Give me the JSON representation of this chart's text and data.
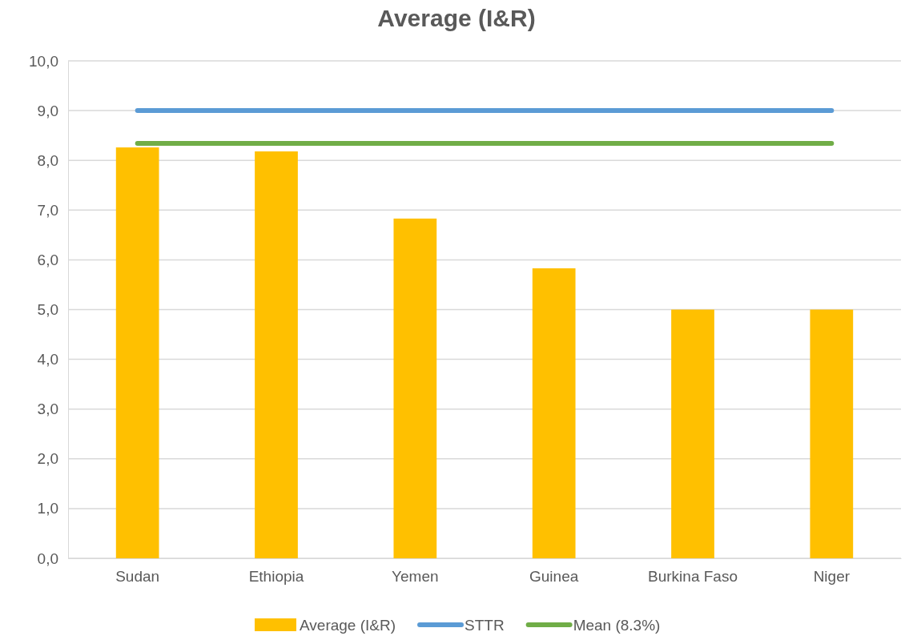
{
  "chart_data": {
    "type": "bar",
    "title": "Average (I&R)",
    "categories": [
      "Sudan",
      "Ethiopia",
      "Yemen",
      "Guinea",
      "Burkina Faso",
      "Niger"
    ],
    "series": [
      {
        "name": "Average (I&R)",
        "color": "#ffc000",
        "values": [
          8.26,
          8.18,
          6.83,
          5.83,
          5.0,
          5.0
        ]
      },
      {
        "name": "STTR",
        "type": "line",
        "color": "#5b9bd5",
        "values": [
          9.0,
          9.0,
          9.0,
          9.0,
          9.0,
          9.0
        ]
      },
      {
        "name": "Mean (8.3%)",
        "type": "line",
        "color": "#70ad47",
        "values": [
          8.34,
          8.34,
          8.34,
          8.34,
          8.34,
          8.34
        ]
      }
    ],
    "ylim": [
      0,
      10
    ],
    "yticks": [
      {
        "value": 0,
        "label": "0,0"
      },
      {
        "value": 1,
        "label": "1,0"
      },
      {
        "value": 2,
        "label": "2,0"
      },
      {
        "value": 3,
        "label": "3,0"
      },
      {
        "value": 4,
        "label": "4,0"
      },
      {
        "value": 5,
        "label": "5,0"
      },
      {
        "value": 6,
        "label": "6,0"
      },
      {
        "value": 7,
        "label": "7,0"
      },
      {
        "value": 8,
        "label": "8,0"
      },
      {
        "value": 9,
        "label": "9,0"
      },
      {
        "value": 10,
        "label": "10,0"
      }
    ],
    "grid": "y",
    "legend": "bottom"
  }
}
